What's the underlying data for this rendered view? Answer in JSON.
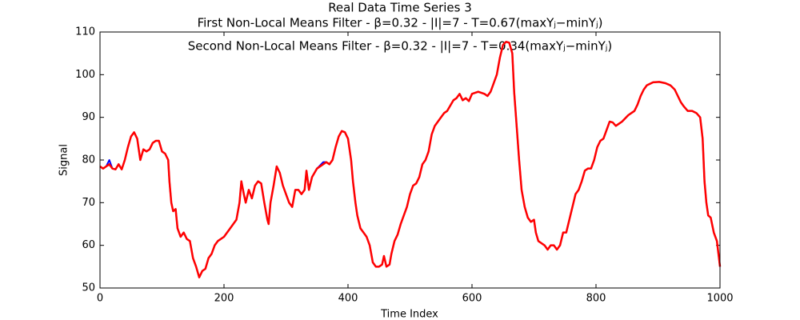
{
  "chart_data": {
    "type": "line",
    "title": "Real Data Time Series 3",
    "subtitle": "First Non-Local Means Filter - β=0.32 - |I|=7 - T=0.67(maxYⱼ−minYⱼ)",
    "annotation": "Second Non-Local Means Filter - β=0.32 - |I|=7 - T=0.34(maxYⱼ−minYⱼ)",
    "x_label": "Time Index",
    "y_label": "Signal",
    "xlim": [
      0,
      1000
    ],
    "ylim": [
      50,
      110
    ],
    "xticks": [
      0,
      200,
      400,
      600,
      800,
      1000
    ],
    "yticks": [
      50,
      60,
      70,
      80,
      90,
      100,
      110
    ],
    "grid": false,
    "x": [
      0,
      5,
      10,
      15,
      20,
      25,
      30,
      35,
      40,
      45,
      50,
      55,
      60,
      65,
      70,
      75,
      80,
      85,
      90,
      95,
      100,
      105,
      110,
      112,
      115,
      118,
      122,
      125,
      130,
      135,
      140,
      145,
      150,
      155,
      160,
      165,
      170,
      175,
      180,
      185,
      190,
      200,
      210,
      220,
      225,
      228,
      232,
      235,
      240,
      245,
      250,
      255,
      260,
      265,
      270,
      272,
      275,
      280,
      285,
      290,
      295,
      300,
      305,
      310,
      315,
      320,
      325,
      330,
      333,
      337,
      342,
      350,
      360,
      365,
      370,
      375,
      380,
      385,
      390,
      395,
      400,
      405,
      408,
      412,
      415,
      420,
      425,
      430,
      435,
      440,
      445,
      450,
      455,
      458,
      462,
      467,
      470,
      475,
      480,
      485,
      490,
      495,
      500,
      505,
      510,
      515,
      520,
      525,
      530,
      535,
      540,
      545,
      550,
      555,
      560,
      570,
      575,
      580,
      585,
      590,
      595,
      600,
      610,
      620,
      625,
      630,
      635,
      640,
      645,
      650,
      655,
      660,
      665,
      668,
      672,
      676,
      680,
      685,
      690,
      695,
      700,
      703,
      707,
      712,
      717,
      722,
      727,
      732,
      737,
      742,
      747,
      752,
      757,
      762,
      767,
      772,
      777,
      782,
      787,
      792,
      797,
      802,
      807,
      812,
      817,
      822,
      827,
      832,
      837,
      842,
      852,
      857,
      862,
      867,
      872,
      877,
      882,
      892,
      902,
      912,
      920,
      927,
      932,
      937,
      942,
      948,
      955,
      962,
      968,
      972,
      975,
      978,
      981,
      985,
      990,
      995,
      1000
    ],
    "series": [
      {
        "name": "First Non-Local Means Filter",
        "color": "#0000ff",
        "values": [
          78.5,
          78,
          78.5,
          80,
          78,
          77.8,
          79,
          77.8,
          80,
          83,
          85.5,
          86.5,
          85,
          80,
          82.5,
          82,
          82.5,
          84,
          84.5,
          84.5,
          82,
          81.5,
          80,
          75,
          70,
          68,
          68.5,
          64,
          62,
          63,
          61.5,
          61,
          57,
          55,
          52.5,
          54,
          54.5,
          57,
          58,
          60,
          61,
          62,
          64,
          66,
          70,
          75,
          72,
          70,
          73,
          71,
          74,
          75,
          74.5,
          70,
          66,
          65,
          70,
          74,
          78.5,
          77,
          74,
          72,
          70,
          69,
          73,
          73,
          72,
          73,
          77.5,
          73,
          76,
          78,
          79.5,
          79.5,
          79,
          80,
          83,
          85.5,
          86.8,
          86.5,
          85,
          80,
          75,
          70,
          67,
          64,
          63,
          62,
          60,
          56,
          55,
          55,
          55.5,
          57.5,
          55,
          55.5,
          58,
          61,
          62.5,
          65,
          67,
          69,
          72,
          74,
          74.5,
          76,
          79,
          80,
          82,
          86,
          88,
          89,
          90,
          91,
          91.5,
          94,
          94.5,
          95.5,
          94,
          94.5,
          93.8,
          95.5,
          96,
          95.5,
          95,
          96,
          98,
          100,
          104,
          107,
          107.7,
          107.5,
          105,
          96,
          88,
          80,
          73,
          69,
          66.5,
          65.5,
          66,
          63,
          61,
          60.5,
          60,
          59,
          60,
          60,
          59,
          60,
          63,
          63,
          66,
          69,
          72,
          73,
          75,
          77.5,
          78,
          78,
          80,
          83,
          84.5,
          85,
          87,
          89,
          88.8,
          88,
          88.5,
          89,
          90.5,
          91,
          91.5,
          93,
          95,
          96.5,
          97.5,
          98.2,
          98.3,
          98,
          97.5,
          96.5,
          95,
          93.5,
          92.5,
          91.5,
          91.5,
          91,
          90,
          85,
          75,
          70,
          67,
          66.5,
          63,
          61,
          55
        ]
      },
      {
        "name": "Second Non-Local Means Filter",
        "color": "#ff0000",
        "values": [
          78.5,
          78,
          78.5,
          79,
          78,
          77.8,
          79,
          77.8,
          80,
          83,
          85.5,
          86.5,
          85,
          80,
          82.5,
          82,
          82.5,
          84,
          84.5,
          84.5,
          82,
          81.5,
          80,
          75,
          70,
          68,
          68.5,
          64,
          62,
          63,
          61.5,
          61,
          57,
          55,
          52.5,
          54,
          54.5,
          57,
          58,
          60,
          61,
          62,
          64,
          66,
          70,
          75,
          72,
          70,
          73,
          71,
          74,
          75,
          74.5,
          70,
          66,
          65,
          70,
          74,
          78.5,
          77,
          74,
          72,
          70,
          69,
          73,
          73,
          72,
          73,
          77.5,
          73,
          76,
          78,
          79,
          79.5,
          79,
          80,
          83,
          85.5,
          86.8,
          86.5,
          85,
          80,
          75,
          70,
          67,
          64,
          63,
          62,
          60,
          56,
          55,
          55,
          55.5,
          57.5,
          55,
          55.5,
          58,
          61,
          62.5,
          65,
          67,
          69,
          72,
          74,
          74.5,
          76,
          79,
          80,
          82,
          86,
          88,
          89,
          90,
          91,
          91.5,
          94,
          94.5,
          95.5,
          94,
          94.5,
          93.8,
          95.5,
          96,
          95.5,
          95,
          96,
          98,
          100,
          104,
          107,
          107.7,
          107.5,
          105,
          96,
          88,
          80,
          73,
          69,
          66.5,
          65.5,
          66,
          63,
          61,
          60.5,
          60,
          59,
          60,
          60,
          59,
          60,
          63,
          63,
          66,
          69,
          72,
          73,
          75,
          77.5,
          78,
          78,
          80,
          83,
          84.5,
          85,
          87,
          89,
          88.8,
          88,
          88.5,
          89,
          90.5,
          91,
          91.5,
          93,
          95,
          96.5,
          97.5,
          98.2,
          98.3,
          98,
          97.5,
          96.5,
          95,
          93.5,
          92.5,
          91.5,
          91.5,
          91,
          90,
          85,
          75,
          70,
          67,
          66.5,
          63,
          61,
          55
        ]
      }
    ]
  }
}
